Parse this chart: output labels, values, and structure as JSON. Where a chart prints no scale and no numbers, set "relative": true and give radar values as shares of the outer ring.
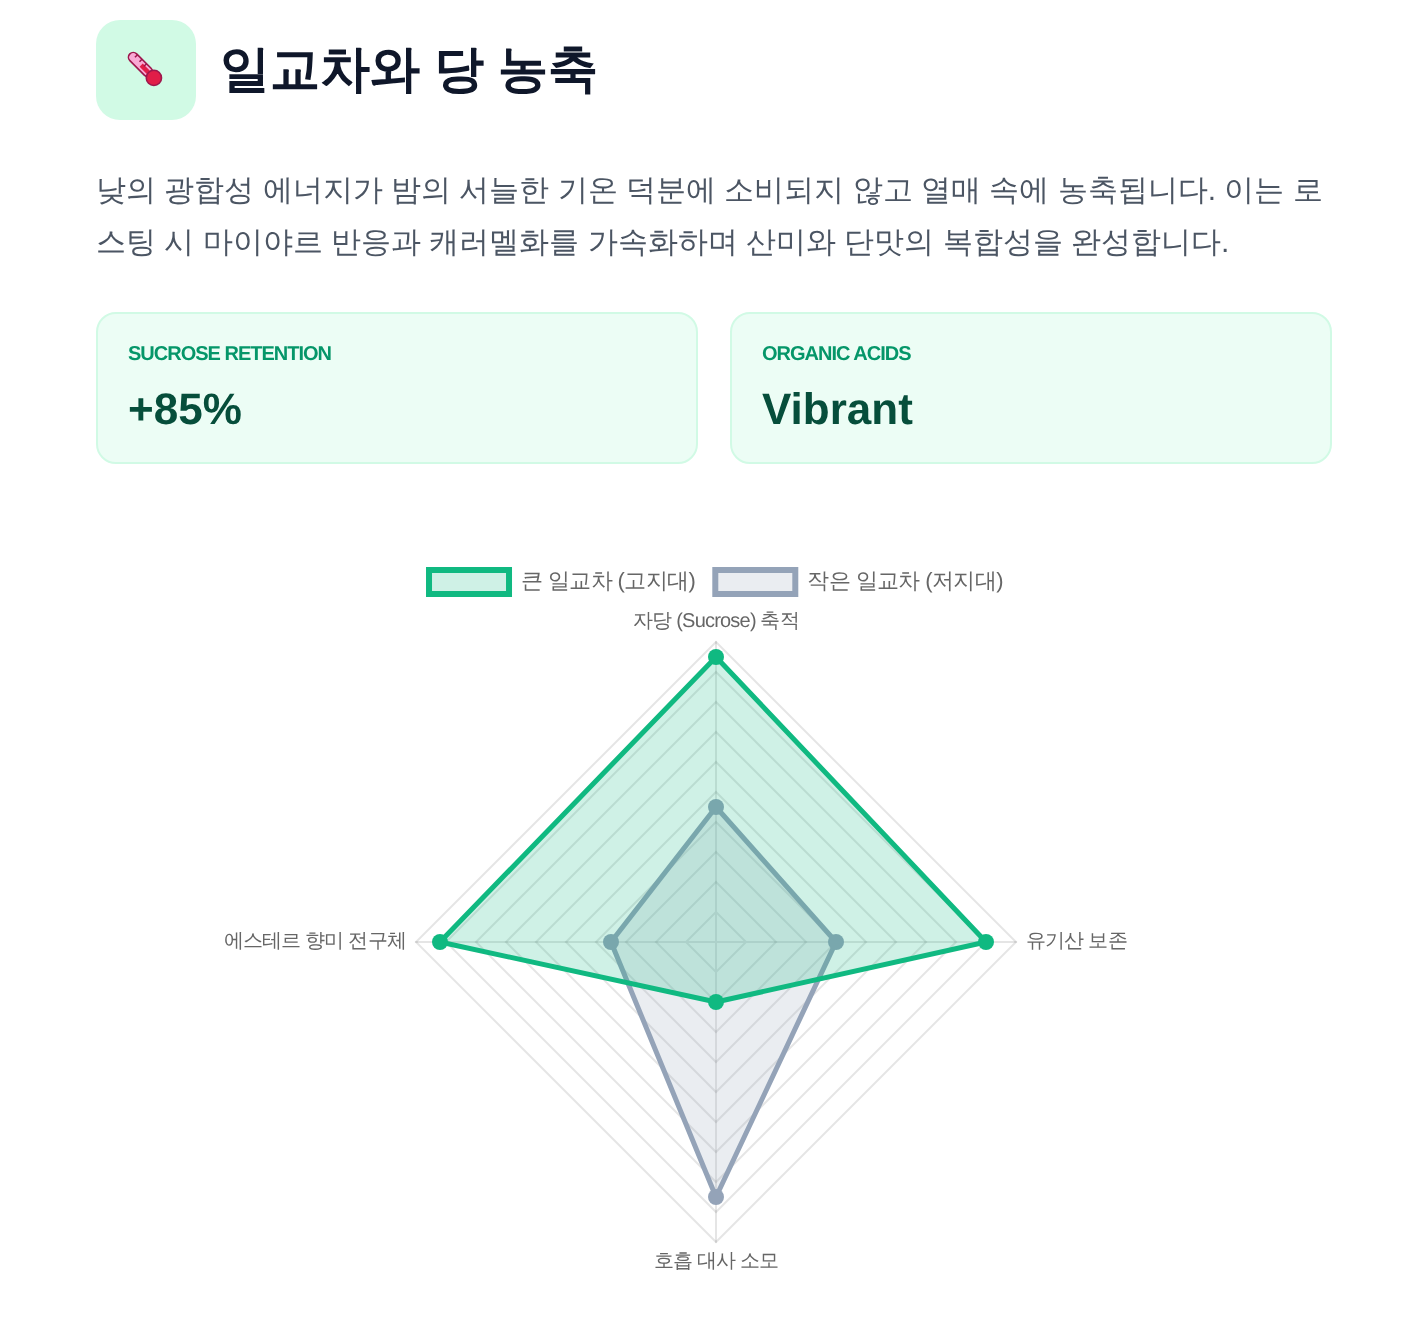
{
  "chart_data": [
    {
      "type": "other",
      "title": "일교차와 당 농축",
      "subtitle": "낮의 광합성 에너지가 밤의 서늘한 기온 덕분에 소비되지 않고 열매 속에 농축됩니다. 이는 로스팅 시 마이야르 반응과 캐러멜화를 가속화하며 산미와 단맛의 복합성을 완성합니다.",
      "annotations": [
        "SUCROSE RETENTION",
        "+85%",
        "ORGANIC ACIDS",
        "Vibrant"
      ]
    },
    {
      "type": "radar",
      "categories": [
        "자당 (Sucrose) 축적",
        "유기산 보존",
        "호흡 대사 소모",
        "에스테르 향미 전구체"
      ],
      "relative": true,
      "grid": true,
      "legend": "top",
      "marker": "circle",
      "series": [
        {
          "name": "큰 일교차 (고지대)",
          "color": "#10b981",
          "values": [
            0.95,
            0.9,
            0.2,
            0.92
          ]
        },
        {
          "name": "작은 일교차 (저지대)",
          "color": "#94a3b8",
          "values": [
            0.45,
            0.4,
            0.85,
            0.35
          ]
        }
      ]
    }
  ]
}
